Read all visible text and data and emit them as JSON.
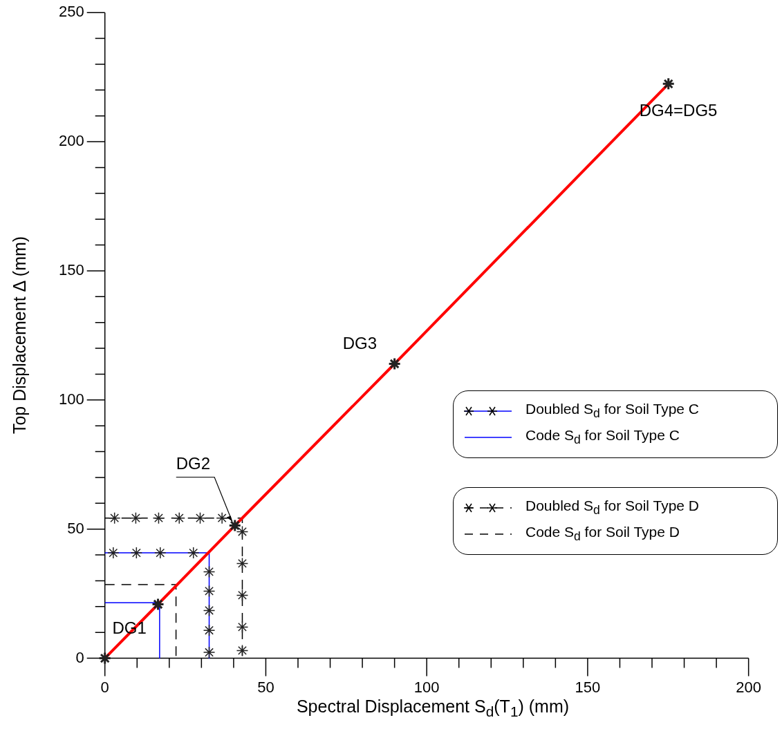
{
  "chart_data": {
    "type": "line",
    "xlabel": "Spectral Displacement S$_{d}$(T$_{1}$) (mm)",
    "ylabel": "Top Displacement Δ (mm)",
    "xlim": [
      0,
      200
    ],
    "ylim": [
      0,
      250
    ],
    "xticks": [
      0,
      {
        "value": 10,
        "label": null
      },
      {
        "value": 20,
        "label": null
      },
      {
        "value": 30,
        "label": null
      },
      {
        "value": 40,
        "label": null
      },
      50,
      {
        "value": 60,
        "label": null
      },
      {
        "value": 70,
        "label": null
      },
      {
        "value": 80,
        "label": null
      },
      {
        "value": 90,
        "label": null
      },
      100,
      {
        "value": 110,
        "label": null
      },
      {
        "value": 120,
        "label": null
      },
      {
        "value": 130,
        "label": null
      },
      {
        "value": 140,
        "label": null
      },
      150,
      {
        "value": 160,
        "label": null
      },
      {
        "value": 170,
        "label": null
      },
      {
        "value": 180,
        "label": null
      },
      {
        "value": 190,
        "label": null
      },
      200
    ],
    "yticks": [
      0,
      {
        "value": 10,
        "label": null
      },
      {
        "value": 20,
        "label": null
      },
      {
        "value": 30,
        "label": null
      },
      {
        "value": 40,
        "label": null
      },
      50,
      {
        "value": 60,
        "label": null
      },
      {
        "value": 70,
        "label": null
      },
      {
        "value": 80,
        "label": null
      },
      {
        "value": 90,
        "label": null
      },
      100,
      {
        "value": 110,
        "label": null
      },
      {
        "value": 120,
        "label": null
      },
      {
        "value": 130,
        "label": null
      },
      {
        "value": 140,
        "label": null
      },
      150,
      {
        "value": 160,
        "label": null
      },
      {
        "value": 170,
        "label": null
      },
      {
        "value": 180,
        "label": null
      },
      {
        "value": 190,
        "label": null
      },
      200,
      {
        "value": 210,
        "label": null
      },
      {
        "value": 220,
        "label": null
      },
      {
        "value": 230,
        "label": null
      },
      {
        "value": 240,
        "label": null
      },
      250
    ],
    "grid": false,
    "legend": "right",
    "series": [
      {
        "color": "#ff0000",
        "marker": "cross",
        "line_style": "solid",
        "x": [
          0,
          16.5,
          40.4,
          90.0,
          175.1
        ],
        "values": [
          0,
          20.9,
          51.4,
          114.0,
          222.4
        ]
      },
      {
        "name": "Doubled S$_{d}$ for Soil Type C",
        "color": "#0000ff",
        "marker": "cross",
        "line_style": "solid",
        "x": [
          0,
          2.6,
          9.8,
          17.2,
          27.5,
          32.4,
          32.4,
          32.4,
          32.4,
          32.4,
          32.4,
          32.4
        ],
        "values": [
          40.8,
          40.8,
          40.8,
          40.8,
          40.8,
          40.8,
          33.5,
          26,
          18.5,
          10.8,
          2.3,
          0
        ]
      },
      {
        "name": "Code S$_{d}$ for Soil Type C",
        "color": "#0000ff",
        "marker": "none",
        "line_style": "solid",
        "x": [
          0,
          17.0,
          17.0
        ],
        "values": [
          21.5,
          21.5,
          0
        ]
      },
      {
        "name": "Doubled S$_{d}$ for Soil Type D",
        "color": "#000000",
        "marker": "cross",
        "line_style": "dashed",
        "x": [
          0,
          3.0,
          9.6,
          16.7,
          23.1,
          29.6,
          36.4,
          42.7,
          42.7,
          42.7,
          42.7,
          42.7,
          42.7,
          42.7
        ],
        "values": [
          54.3,
          54.3,
          54.3,
          54.3,
          54.3,
          54.3,
          54.3,
          54.3,
          49.0,
          36.7,
          24.4,
          12.1,
          3.0,
          0
        ]
      },
      {
        "name": "Code S$_{d}$ for Soil Type D",
        "color": "#000000",
        "marker": "none",
        "line_style": "dashed",
        "x": [
          0,
          22.1,
          22.1
        ],
        "values": [
          28.5,
          28.5,
          0
        ]
      }
    ],
    "annotations": [
      {
        "text": "DG1",
        "x": 16.5,
        "y": 20.9
      },
      {
        "text": "DG2",
        "x": 40.4,
        "y": 51.4
      },
      {
        "text": "DG3",
        "x": 90.0,
        "y": 114.0
      },
      {
        "text": "DG4=DG5",
        "x": 175.1,
        "y": 222.4
      }
    ]
  }
}
